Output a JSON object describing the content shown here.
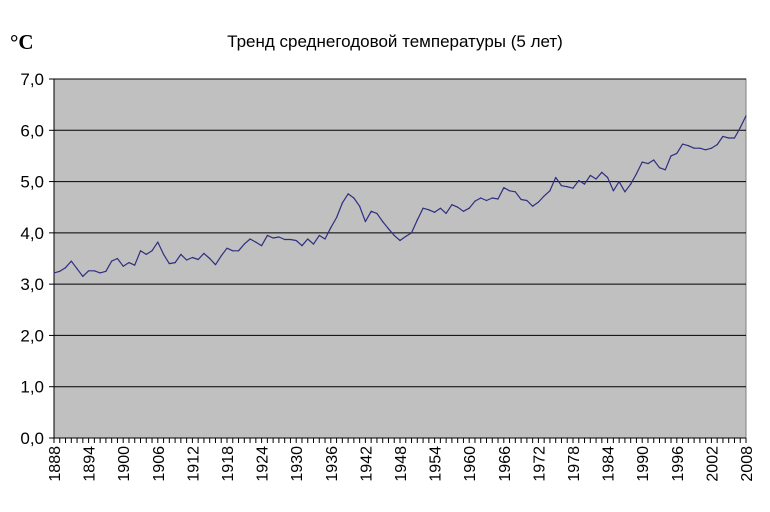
{
  "chart_data": {
    "type": "line",
    "title": "Тренд среднегодовой температуры (5 лет)",
    "ylabel": "°C",
    "xlabel": "",
    "ylim": [
      0,
      7
    ],
    "xlim": [
      1888,
      2008
    ],
    "yticks": [
      "0,0",
      "1,0",
      "2,0",
      "3,0",
      "4,0",
      "5,0",
      "6,0",
      "7,0"
    ],
    "xticks": [
      "1888",
      "1894",
      "1900",
      "1906",
      "1912",
      "1918",
      "1924",
      "1930",
      "1936",
      "1942",
      "1948",
      "1954",
      "1960",
      "1966",
      "1972",
      "1978",
      "1984",
      "1990",
      "1996",
      "2002",
      "2008"
    ],
    "grid": "horizontal",
    "legend": "none",
    "colors": {
      "plot_background": "#c0c0c0",
      "line": "#2e2e80",
      "grid": "#000000"
    },
    "x_start": 1888,
    "values": [
      3.22,
      3.25,
      3.32,
      3.45,
      3.3,
      3.15,
      3.26,
      3.26,
      3.22,
      3.25,
      3.45,
      3.5,
      3.35,
      3.42,
      3.37,
      3.65,
      3.58,
      3.65,
      3.82,
      3.58,
      3.4,
      3.42,
      3.58,
      3.47,
      3.52,
      3.48,
      3.6,
      3.5,
      3.38,
      3.55,
      3.7,
      3.65,
      3.65,
      3.78,
      3.88,
      3.82,
      3.75,
      3.95,
      3.9,
      3.92,
      3.87,
      3.87,
      3.85,
      3.75,
      3.88,
      3.78,
      3.95,
      3.88,
      4.1,
      4.3,
      4.58,
      4.76,
      4.68,
      4.52,
      4.22,
      4.42,
      4.38,
      4.22,
      4.08,
      3.95,
      3.85,
      3.93,
      4.0,
      4.25,
      4.48,
      4.45,
      4.4,
      4.48,
      4.38,
      4.55,
      4.5,
      4.42,
      4.48,
      4.62,
      4.68,
      4.63,
      4.68,
      4.66,
      4.88,
      4.82,
      4.8,
      4.65,
      4.63,
      4.52,
      4.6,
      4.72,
      4.82,
      5.08,
      4.92,
      4.9,
      4.87,
      5.02,
      4.95,
      5.12,
      5.05,
      5.18,
      5.08,
      4.82,
      5.0,
      4.8,
      4.95,
      5.15,
      5.38,
      5.35,
      5.42,
      5.27,
      5.23,
      5.5,
      5.55,
      5.73,
      5.7,
      5.65,
      5.65,
      5.62,
      5.65,
      5.72,
      5.88,
      5.85,
      5.85,
      6.05,
      6.28
    ]
  }
}
